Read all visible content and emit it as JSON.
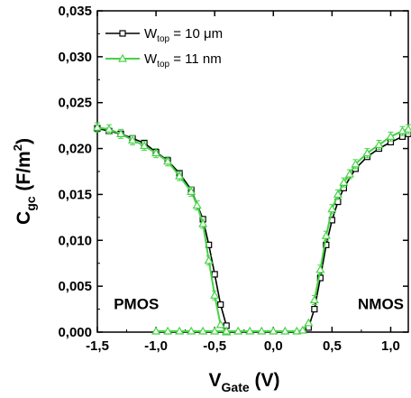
{
  "chart_data": {
    "type": "line",
    "xlabel": {
      "main": "V",
      "sub": "Gate",
      "unit": " (V)"
    },
    "ylabel": {
      "main": "C",
      "sub": "gc",
      "unit_pre": " (F/m",
      "unit_sup": "2",
      "unit_post": ")"
    },
    "xlim": [
      -1.5,
      1.15
    ],
    "ylim": [
      0,
      0.035
    ],
    "x_ticks": [
      -1.5,
      -1.0,
      -0.5,
      0.0,
      0.5,
      1.0
    ],
    "x_tick_labels": [
      "-1,5",
      "-1,0",
      "-0,5",
      "0,0",
      "0,5",
      "1,0"
    ],
    "y_ticks": [
      0,
      0.005,
      0.01,
      0.015,
      0.02,
      0.025,
      0.03,
      0.035
    ],
    "y_tick_labels": [
      "0,000",
      "0,005",
      "0,010",
      "0,015",
      "0,020",
      "0,025",
      "0,030",
      "0,035"
    ],
    "legend": {
      "position": "top-left"
    },
    "grid": false,
    "annotations": [
      {
        "text": "PMOS",
        "x": -1.36,
        "y": 0.0025
      },
      {
        "text": "NMOS",
        "x": 0.72,
        "y": 0.0025
      }
    ],
    "series": [
      {
        "name": {
          "main": "W",
          "sub": "top",
          "rest": " = 10 μm"
        },
        "color": "#000000",
        "marker": "square",
        "error_bars": false,
        "segments": [
          {
            "x": [
              -1.5,
              -1.4,
              -1.3,
              -1.2,
              -1.1,
              -1.0,
              -0.9,
              -0.8,
              -0.7,
              -0.6,
              -0.55,
              -0.5,
              -0.45,
              -0.4
            ],
            "y": [
              0.0222,
              0.0219,
              0.0216,
              0.0211,
              0.0206,
              0.0196,
              0.0187,
              0.0173,
              0.0155,
              0.0123,
              0.0095,
              0.0063,
              0.003,
              0.0007
            ]
          },
          {
            "x": [
              0.3,
              0.35,
              0.4,
              0.45,
              0.5,
              0.55,
              0.6,
              0.7,
              0.8,
              0.9,
              1.0,
              1.1,
              1.15
            ],
            "y": [
              0.0005,
              0.0025,
              0.0059,
              0.0095,
              0.0122,
              0.0142,
              0.0157,
              0.0178,
              0.0191,
              0.02,
              0.0207,
              0.0213,
              0.0216
            ]
          }
        ]
      },
      {
        "name": {
          "main": "W",
          "sub": "top",
          "rest": " = 11 nm"
        },
        "color": "#47d247",
        "marker": "triangle",
        "error_bars": true,
        "segments": [
          {
            "x": [
              -1.5,
              -1.4,
              -1.3,
              -1.2,
              -1.1,
              -1.0,
              -0.9,
              -0.8,
              -0.7,
              -0.65,
              -0.6,
              -0.55,
              -0.5,
              -0.45,
              -0.4
            ],
            "y": [
              0.0223,
              0.0221,
              0.0216,
              0.0209,
              0.0203,
              0.0195,
              0.0186,
              0.017,
              0.0153,
              0.0138,
              0.0118,
              0.0078,
              0.004,
              0.0008,
              0.0
            ]
          },
          {
            "x": [
              -1.0,
              -0.9,
              -0.8,
              -0.7,
              -0.6,
              -0.5,
              -0.4,
              -0.3,
              -0.2,
              -0.1,
              0.0,
              0.1,
              0.2,
              0.25,
              0.3
            ],
            "y": [
              0.0001,
              0.0001,
              0.0001,
              0.0001,
              0.0001,
              0.0001,
              0.0001,
              0.0001,
              0.0001,
              0.0001,
              0.0001,
              0.0001,
              0.0001,
              0.0002,
              0.001
            ]
          },
          {
            "x": [
              0.35,
              0.4,
              0.45,
              0.5,
              0.55,
              0.6,
              0.65,
              0.7,
              0.8,
              0.9,
              1.0,
              1.1,
              1.15
            ],
            "y": [
              0.0035,
              0.0068,
              0.0105,
              0.0134,
              0.015,
              0.0163,
              0.0172,
              0.0183,
              0.0195,
              0.0204,
              0.0213,
              0.0219,
              0.0221
            ]
          }
        ]
      }
    ]
  }
}
